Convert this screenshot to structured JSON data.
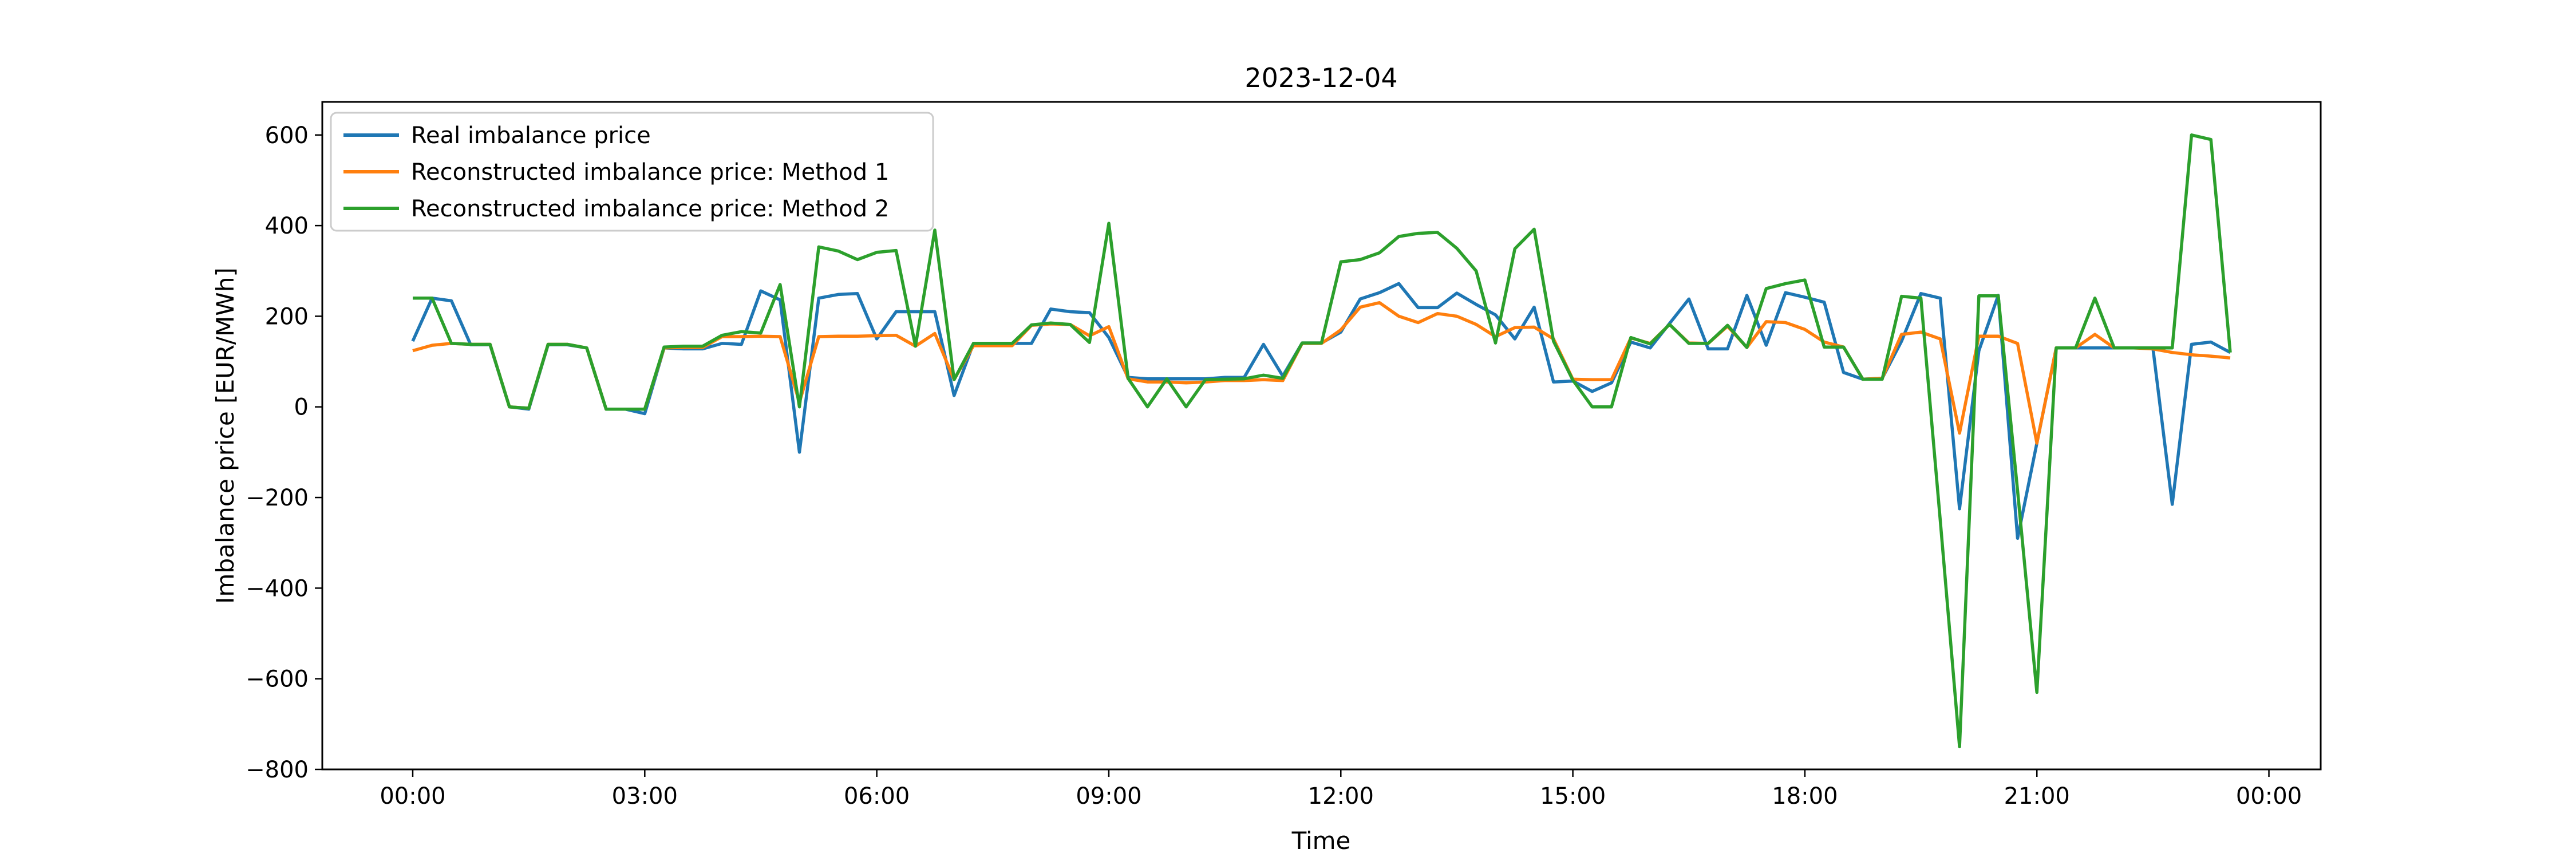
{
  "figure": {
    "title": "2023-12-04",
    "x_label": "Time",
    "y_label": "Imbalance price [EUR/MWh]",
    "background_color": "#ffffff",
    "spine_color": "#000000"
  },
  "legend": {
    "position": "upper left",
    "border_color": "#cccccc",
    "entries": [
      {
        "label": "Real imbalance price",
        "color": "#1f77b4"
      },
      {
        "label": "Reconstructed imbalance price: Method 1",
        "color": "#ff7f0e"
      },
      {
        "label": "Reconstructed imbalance price: Method 2",
        "color": "#2ca02c"
      }
    ]
  },
  "chart_data": {
    "type": "line",
    "title": "2023-12-04",
    "xlabel": "Time",
    "ylabel": "Imbalance price [EUR/MWh]",
    "grid": false,
    "legend_position": "upper left",
    "x_start": "00:00",
    "x_step_minutes": 15,
    "n_points": 95,
    "x_tick_labels": [
      "00:00",
      "03:00",
      "06:00",
      "09:00",
      "12:00",
      "15:00",
      "18:00",
      "21:00",
      "00:00"
    ],
    "x_tick_step_indices": 12,
    "y_ticks": [
      600,
      400,
      200,
      0,
      -200,
      -400,
      -600,
      -800
    ],
    "ylim": [
      -800,
      673
    ],
    "series": [
      {
        "name": "Real imbalance price",
        "color": "#1f77b4",
        "values": [
          145,
          240,
          234,
          137,
          137,
          0,
          -5,
          137,
          137,
          130,
          -5,
          -5,
          -15,
          130,
          128,
          128,
          140,
          138,
          256,
          236,
          -100,
          240,
          248,
          250,
          150,
          210,
          210,
          210,
          25,
          140,
          140,
          140,
          140,
          216,
          210,
          208,
          153,
          65,
          62,
          62,
          62,
          62,
          65,
          65,
          138,
          68,
          141,
          141,
          165,
          238,
          252,
          272,
          219,
          219,
          251,
          226,
          203,
          150,
          220,
          55,
          57,
          34,
          53,
          143,
          130,
          184,
          238,
          128,
          128,
          246,
          136,
          252,
          242,
          231,
          76,
          61,
          63,
          145,
          250,
          240,
          -225,
          124,
          246,
          -290,
          -80,
          130,
          130,
          130,
          130,
          130,
          130,
          -215,
          138,
          143,
          120
        ]
      },
      {
        "name": "Reconstructed imbalance price: Method 1",
        "color": "#ff7f0e",
        "values": [
          124,
          136,
          140,
          138,
          138,
          0,
          -3,
          138,
          138,
          130,
          -5,
          -5,
          -5,
          130,
          131,
          131,
          155,
          155,
          156,
          155,
          10,
          155,
          156,
          156,
          157,
          158,
          134,
          162,
          60,
          135,
          135,
          135,
          180,
          183,
          182,
          157,
          177,
          62,
          55,
          55,
          53,
          55,
          58,
          58,
          60,
          58,
          140,
          140,
          170,
          220,
          230,
          200,
          186,
          206,
          200,
          182,
          155,
          175,
          176,
          150,
          61,
          60,
          60,
          152,
          140,
          182,
          141,
          140,
          178,
          131,
          188,
          186,
          171,
          143,
          132,
          61,
          63,
          160,
          165,
          150,
          -58,
          156,
          156,
          140,
          -80,
          130,
          130,
          160,
          130,
          130,
          128,
          120,
          115,
          112,
          108
        ]
      },
      {
        "name": "Reconstructed imbalance price: Method 2",
        "color": "#2ca02c",
        "values": [
          240,
          240,
          140,
          138,
          138,
          0,
          -3,
          138,
          138,
          130,
          -5,
          -5,
          -5,
          132,
          134,
          134,
          158,
          166,
          163,
          270,
          0,
          353,
          344,
          325,
          341,
          345,
          134,
          390,
          60,
          140,
          140,
          140,
          181,
          185,
          182,
          142,
          405,
          63,
          0,
          62,
          0,
          60,
          61,
          62,
          70,
          63,
          141,
          141,
          320,
          325,
          340,
          376,
          383,
          385,
          350,
          300,
          141,
          349,
          392,
          145,
          59,
          0,
          0,
          153,
          139,
          182,
          140,
          140,
          180,
          131,
          261,
          272,
          280,
          132,
          132,
          61,
          61,
          244,
          240,
          -250,
          -750,
          245,
          245,
          -185,
          -630,
          130,
          130,
          240,
          130,
          130,
          130,
          130,
          600,
          590,
          120
        ]
      }
    ]
  }
}
